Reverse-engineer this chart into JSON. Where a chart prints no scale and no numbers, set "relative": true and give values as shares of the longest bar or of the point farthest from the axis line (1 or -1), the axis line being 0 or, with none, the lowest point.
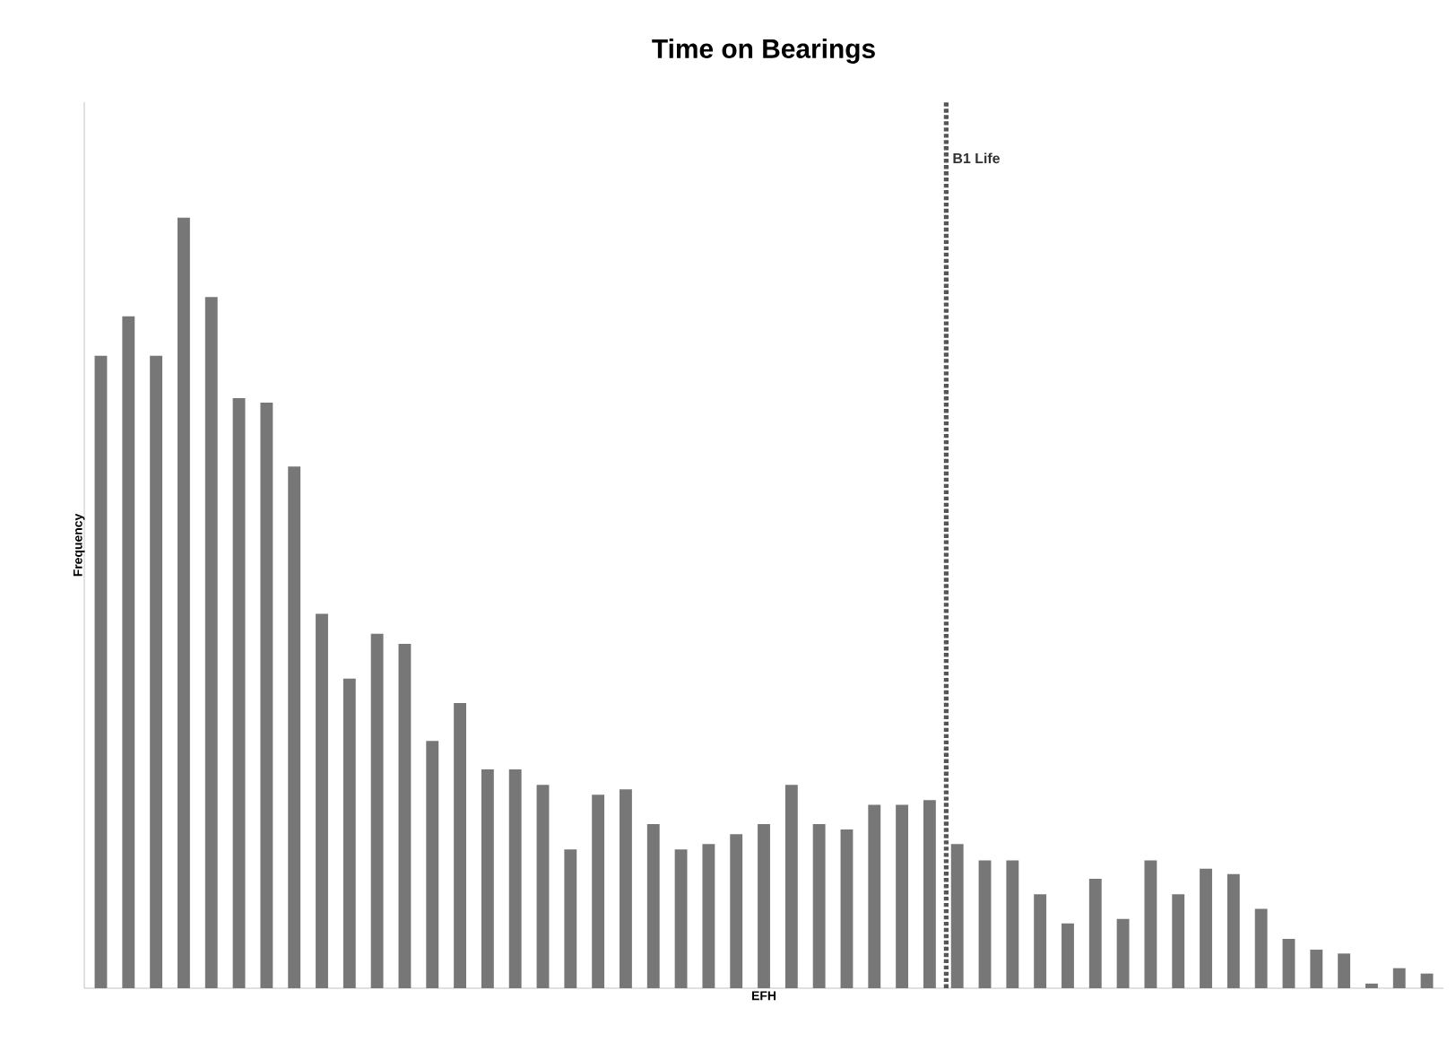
{
  "chart_data": {
    "type": "bar",
    "title": "Time on Bearings",
    "xlabel": "EFH",
    "ylabel": "Frequency",
    "relative": true,
    "color": "#777777",
    "categories": [
      null,
      null,
      null,
      null,
      null,
      null,
      null,
      null,
      null,
      null,
      null,
      null,
      null,
      null,
      null,
      null,
      null,
      null,
      null,
      null,
      null,
      null,
      null,
      null,
      null,
      null,
      null,
      null,
      null,
      null,
      null,
      null,
      null,
      null,
      null,
      null,
      null,
      null,
      null,
      null,
      null,
      null,
      null,
      null,
      null,
      null,
      null,
      null,
      null
    ],
    "values": [
      0.821,
      0.872,
      0.821,
      1,
      0.897,
      0.766,
      0.76,
      0.677,
      0.486,
      0.402,
      0.46,
      0.447,
      0.321,
      0.37,
      0.284,
      0.284,
      0.264,
      0.18,
      0.251,
      0.258,
      0.213,
      0.18,
      0.187,
      0.2,
      0.213,
      0.264,
      0.213,
      0.206,
      0.238,
      0.238,
      0.244,
      0.187,
      0.166,
      0.166,
      0.122,
      0.084,
      0.142,
      0.09,
      0.166,
      0.122,
      0.155,
      0.148,
      0.103,
      0.064,
      0.05,
      0.045,
      0.006,
      0.026,
      0.019
    ],
    "annotations": [
      "B1 Life"
    ]
  }
}
